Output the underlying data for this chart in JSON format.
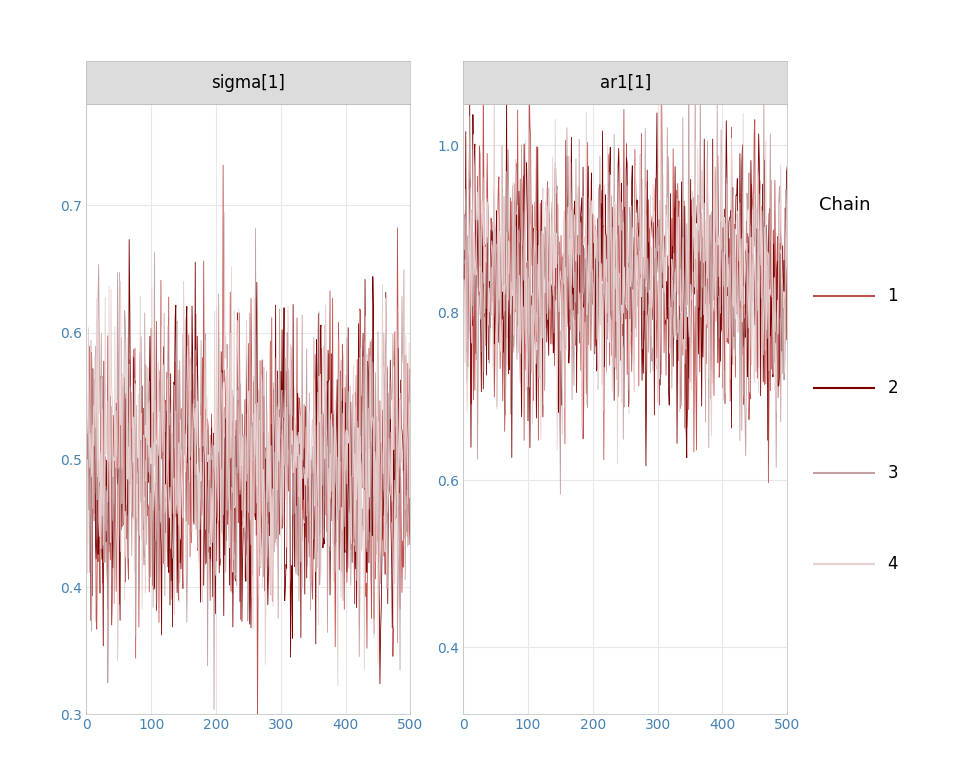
{
  "panel1_title": "sigma[1]",
  "panel2_title": "ar1[1]",
  "legend_title": "Chain",
  "legend_labels": [
    "1",
    "2",
    "3",
    "4"
  ],
  "chain_colors": [
    "#C0504D",
    "#7B0000",
    "#C4A0A0",
    "#E8D0D0"
  ],
  "chain_alphas": [
    1.0,
    1.0,
    1.0,
    1.0
  ],
  "chain_linewidths": [
    0.6,
    0.6,
    0.6,
    0.6
  ],
  "n_samples": 500,
  "sigma_ylim": [
    0.3,
    0.78
  ],
  "ar1_ylim": [
    0.32,
    1.05
  ],
  "sigma_yticks": [
    0.3,
    0.4,
    0.5,
    0.6,
    0.7
  ],
  "ar1_yticks": [
    0.4,
    0.6,
    0.8,
    1.0
  ],
  "xticks": [
    0,
    100,
    200,
    300,
    400,
    500
  ],
  "xlim": [
    0,
    500
  ],
  "background_color": "#FFFFFF",
  "panel_bg": "#FFFFFF",
  "grid_color": "#E8E8E8",
  "header_bg": "#DCDCDC",
  "header_color": "#000000",
  "sigma_means": [
    0.49,
    0.49,
    0.5,
    0.5
  ],
  "sigma_stds": [
    0.062,
    0.062,
    0.062,
    0.062
  ],
  "ar1_means": [
    0.84,
    0.84,
    0.84,
    0.84
  ],
  "ar1_stds": [
    0.085,
    0.085,
    0.085,
    0.085
  ],
  "seed": 42,
  "tick_color": "#4682B4",
  "tick_fontsize": 10,
  "legend_fontsize": 12,
  "legend_title_fontsize": 13,
  "header_fontsize": 12
}
